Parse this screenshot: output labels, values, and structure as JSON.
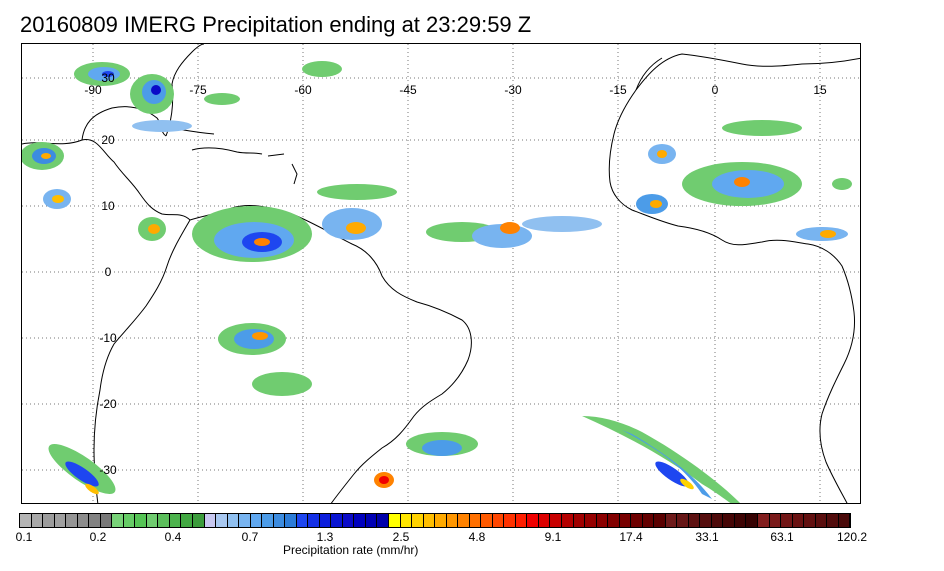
{
  "title": "20160809 IMERG Precipitation ending at 23:29:59 Z",
  "map": {
    "lon_labels": [
      "-90",
      "-75",
      "-60",
      "-45",
      "-30",
      "-15",
      "0",
      "15"
    ],
    "lat_labels": [
      "30",
      "20",
      "10",
      "0",
      "-10",
      "-20",
      "-30"
    ]
  },
  "colorbar": {
    "colors": [
      "#b4b4b4",
      "#a8a8a8",
      "#9c9c9c",
      "#a0a0a0",
      "#959595",
      "#8c8c8c",
      "#828282",
      "#787878",
      "#78d278",
      "#66cc66",
      "#55c455",
      "#70cc70",
      "#5cbf5c",
      "#4db34d",
      "#42a842",
      "#3c9c3c",
      "#c8c8f0",
      "#a8c8f0",
      "#90c0f0",
      "#78b4f0",
      "#60a8f0",
      "#4c9ce8",
      "#3c8ce0",
      "#2c7cd8",
      "#1e46f0",
      "#1430e6",
      "#0c1edc",
      "#0814d2",
      "#0a0ac8",
      "#0000be",
      "#0000b4",
      "#0000aa",
      "#ffff00",
      "#ffe600",
      "#ffd200",
      "#ffbe00",
      "#ffaa00",
      "#ff9600",
      "#ff8200",
      "#ff7000",
      "#ff5a00",
      "#ff4600",
      "#ff3200",
      "#ff1e00",
      "#f00000",
      "#dc0000",
      "#c80000",
      "#b40000",
      "#a00000",
      "#960000",
      "#8c0000",
      "#820000",
      "#780000",
      "#6e0000",
      "#640000",
      "#5a0000",
      "#6e1a1a",
      "#661616",
      "#5e1212",
      "#560e0e",
      "#4e0a0a",
      "#460606",
      "#3e0404",
      "#360202",
      "#821e1e",
      "#7a1a1a",
      "#721616",
      "#6a1212",
      "#621010",
      "#5a0e0e",
      "#520c0c",
      "#4a0a0a"
    ],
    "labels": [
      "0.1",
      "0.2",
      "0.4",
      "0.7",
      "1.3",
      "2.5",
      "4.8",
      "9.1",
      "17.4",
      "33.1",
      "63.1",
      "120.2"
    ],
    "units_label": "Precipitation rate (mm/hr)"
  }
}
